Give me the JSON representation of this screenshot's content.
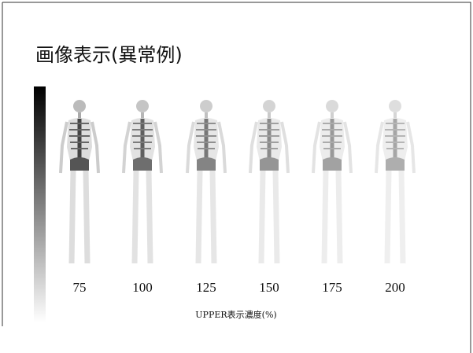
{
  "title": "画像表示(異常例)",
  "panels": [
    {
      "label": 75
    },
    {
      "label": 100
    },
    {
      "label": 125
    },
    {
      "label": 150
    },
    {
      "label": 175
    },
    {
      "label": 200
    }
  ],
  "caption": "UPPER表示濃度(%)"
}
